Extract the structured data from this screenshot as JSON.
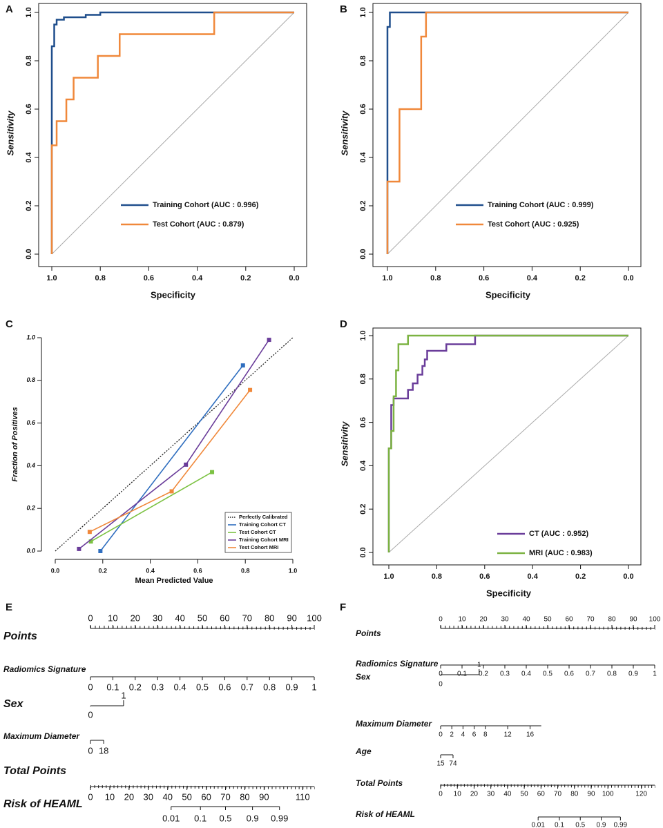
{
  "chart_data": [
    {
      "type": "line",
      "label": "A",
      "xlabel": "Specificity",
      "ylabel": "Sensitivity",
      "diagonal": true,
      "legend": "bottom",
      "xlim": [
        1,
        0
      ],
      "ylim": [
        0,
        1
      ],
      "xticks": [
        {
          "value": 1,
          "label": "1.0"
        },
        {
          "value": 0.8,
          "label": "0.8"
        },
        {
          "value": 0.6,
          "label": "0.6"
        },
        {
          "value": 0.4,
          "label": "0.4"
        },
        {
          "value": 0.2,
          "label": "0.2"
        },
        {
          "value": 0,
          "label": "0.0"
        }
      ],
      "yticks": [
        {
          "value": 0,
          "label": "0.0"
        },
        {
          "value": 0.2,
          "label": "0.2"
        },
        {
          "value": 0.4,
          "label": "0.4"
        },
        {
          "value": 0.6,
          "label": "0.6"
        },
        {
          "value": 0.8,
          "label": "0.8"
        },
        {
          "value": 1,
          "label": "1.0"
        }
      ],
      "series": [
        {
          "name": "Training Cohort (AUC : 0.996)",
          "color": "#1f4e8c",
          "x": [
            1,
            1,
            0.99,
            0.99,
            0.98,
            0.98,
            0.95,
            0.95,
            0.86,
            0.86,
            0.8,
            0.8,
            0
          ],
          "values": [
            0,
            0.86,
            0.86,
            0.95,
            0.95,
            0.97,
            0.97,
            0.98,
            0.98,
            0.99,
            0.99,
            1,
            1
          ]
        },
        {
          "name": "Test Cohort (AUC : 0.879)",
          "color": "#f0883a",
          "x": [
            1,
            1,
            0.98,
            0.98,
            0.94,
            0.94,
            0.91,
            0.91,
            0.81,
            0.81,
            0.72,
            0.72,
            0.33,
            0.33,
            0
          ],
          "values": [
            0,
            0.45,
            0.45,
            0.55,
            0.55,
            0.64,
            0.64,
            0.73,
            0.73,
            0.82,
            0.82,
            0.91,
            0.91,
            1,
            1
          ]
        }
      ]
    },
    {
      "type": "line",
      "label": "B",
      "xlabel": "Specificity",
      "ylabel": "Sensitivity",
      "diagonal": true,
      "legend": "bottom",
      "xlim": [
        1,
        0
      ],
      "ylim": [
        0,
        1
      ],
      "xticks": [
        {
          "value": 1,
          "label": "1.0"
        },
        {
          "value": 0.8,
          "label": "0.8"
        },
        {
          "value": 0.6,
          "label": "0.6"
        },
        {
          "value": 0.4,
          "label": "0.4"
        },
        {
          "value": 0.2,
          "label": "0.2"
        },
        {
          "value": 0,
          "label": "0.0"
        }
      ],
      "yticks": [
        {
          "value": 0,
          "label": "0.0"
        },
        {
          "value": 0.2,
          "label": "0.2"
        },
        {
          "value": 0.4,
          "label": "0.4"
        },
        {
          "value": 0.6,
          "label": "0.6"
        },
        {
          "value": 0.8,
          "label": "0.8"
        },
        {
          "value": 1,
          "label": "1.0"
        }
      ],
      "series": [
        {
          "name": "Training Cohort (AUC : 0.999)",
          "color": "#1f4e8c",
          "x": [
            1,
            1,
            0.99,
            0.99,
            0
          ],
          "values": [
            0,
            0.94,
            0.94,
            1,
            1
          ]
        },
        {
          "name": "Test Cohort (AUC : 0.925)",
          "color": "#f0883a",
          "x": [
            1,
            1,
            0.95,
            0.95,
            0.86,
            0.86,
            0.84,
            0.84,
            0
          ],
          "values": [
            0,
            0.3,
            0.3,
            0.6,
            0.6,
            0.9,
            0.9,
            1,
            1
          ]
        }
      ]
    },
    {
      "type": "line",
      "label": "C",
      "xlabel": "Mean Predicted Value",
      "ylabel": "Fraction of Positives",
      "markers": true,
      "legend": "bottom-right",
      "xlim": [
        0,
        1
      ],
      "ylim": [
        0,
        1
      ],
      "xticks": [
        {
          "value": 0,
          "label": "0.0"
        },
        {
          "value": 0.2,
          "label": "0.2"
        },
        {
          "value": 0.4,
          "label": "0.4"
        },
        {
          "value": 0.6,
          "label": "0.6"
        },
        {
          "value": 0.8,
          "label": "0.8"
        },
        {
          "value": 1,
          "label": "1.0"
        }
      ],
      "yticks": [
        {
          "value": 0,
          "label": "0.0"
        },
        {
          "value": 0.2,
          "label": "0.2"
        },
        {
          "value": 0.4,
          "label": "0.4"
        },
        {
          "value": 0.6,
          "label": "0.6"
        },
        {
          "value": 0.8,
          "label": "0.8"
        },
        {
          "value": 1,
          "label": "1.0"
        }
      ],
      "series": [
        {
          "name": "Perfectly Calibrated",
          "color": "#222222",
          "style": "dotted",
          "x": [
            0,
            1
          ],
          "values": [
            0,
            1
          ]
        },
        {
          "name": "Training Cohort CT",
          "color": "#2f6ebf",
          "x": [
            0.19,
            0.79
          ],
          "values": [
            0,
            0.87
          ]
        },
        {
          "name": "Test Cohort CT",
          "color": "#7cc243",
          "x": [
            0.15,
            0.66
          ],
          "values": [
            0.045,
            0.37
          ]
        },
        {
          "name": "Training Cohort MRI",
          "color": "#6a3d9a",
          "x": [
            0.1,
            0.55,
            0.9
          ],
          "values": [
            0.01,
            0.405,
            0.99
          ]
        },
        {
          "name": "Test Cohort MRI",
          "color": "#f0883a",
          "x": [
            0.145,
            0.49,
            0.82
          ],
          "values": [
            0.09,
            0.28,
            0.755
          ]
        }
      ]
    },
    {
      "type": "line",
      "label": "D",
      "xlabel": "Specificity",
      "ylabel": "Sensitivity",
      "diagonal": true,
      "legend": "bottom",
      "xlim": [
        1,
        0
      ],
      "ylim": [
        0,
        1
      ],
      "xticks": [
        {
          "value": 1,
          "label": "1.0"
        },
        {
          "value": 0.8,
          "label": "0.8"
        },
        {
          "value": 0.6,
          "label": "0.6"
        },
        {
          "value": 0.4,
          "label": "0.4"
        },
        {
          "value": 0.2,
          "label": "0.2"
        },
        {
          "value": 0,
          "label": "0.0"
        }
      ],
      "yticks": [
        {
          "value": 0,
          "label": "0.0"
        },
        {
          "value": 0.2,
          "label": "0.2"
        },
        {
          "value": 0.4,
          "label": "0.4"
        },
        {
          "value": 0.6,
          "label": "0.6"
        },
        {
          "value": 0.8,
          "label": "0.8"
        },
        {
          "value": 1,
          "label": "1.0"
        }
      ],
      "series": [
        {
          "name": "CT (AUC : 0.952)",
          "color": "#6a3d9a",
          "x": [
            1,
            1,
            0.99,
            0.99,
            0.98,
            0.98,
            0.92,
            0.92,
            0.9,
            0.9,
            0.88,
            0.88,
            0.86,
            0.86,
            0.85,
            0.85,
            0.84,
            0.84,
            0.76,
            0.76,
            0.64,
            0.64,
            0
          ],
          "values": [
            0,
            0.48,
            0.48,
            0.68,
            0.68,
            0.71,
            0.71,
            0.75,
            0.75,
            0.78,
            0.78,
            0.82,
            0.82,
            0.86,
            0.86,
            0.89,
            0.89,
            0.93,
            0.93,
            0.96,
            0.96,
            1,
            1
          ]
        },
        {
          "name": "MRI (AUC : 0.983)",
          "color": "#7cb342",
          "x": [
            1,
            1,
            0.99,
            0.99,
            0.98,
            0.98,
            0.97,
            0.97,
            0.96,
            0.96,
            0.92,
            0.92,
            0
          ],
          "values": [
            0,
            0.48,
            0.48,
            0.56,
            0.56,
            0.72,
            0.72,
            0.84,
            0.84,
            0.96,
            0.96,
            1,
            1
          ]
        }
      ]
    },
    {
      "type": "nomogram",
      "label": "E",
      "total_lim": [
        0,
        116
      ],
      "rows": [
        {
          "name": "Points",
          "domain": [
            0,
            100
          ],
          "points": [
            0,
            100
          ],
          "ticks": [
            0,
            10,
            20,
            30,
            40,
            50,
            60,
            70,
            80,
            90,
            100
          ]
        },
        {
          "name": "Radiomics Signature",
          "domain": [
            0,
            1
          ],
          "points": [
            0,
            100
          ],
          "ticks": [
            0,
            0.1,
            0.2,
            0.3,
            0.4,
            0.5,
            0.6,
            0.7,
            0.8,
            0.9,
            1
          ]
        },
        {
          "name": "Sex",
          "domain": [
            0,
            1
          ],
          "points": [
            0,
            14.8
          ],
          "ticks": [
            0,
            1
          ]
        },
        {
          "name": "Maximum Diameter",
          "domain": [
            0,
            18
          ],
          "points": [
            0,
            5.9
          ],
          "ticks": [
            0,
            18
          ]
        },
        {
          "name": "Total Points",
          "axis": "total",
          "ticks": [
            0,
            10,
            20,
            30,
            40,
            50,
            60,
            70,
            80,
            90,
            110
          ]
        },
        {
          "name": "Risk of HEAML",
          "ticks": [
            0.01,
            0.1,
            0.5,
            0.9,
            0.99
          ],
          "total_points": [
            41.8,
            57,
            70,
            84,
            98
          ]
        }
      ]
    },
    {
      "type": "nomogram",
      "label": "F",
      "total_lim": [
        0,
        128
      ],
      "rows": [
        {
          "name": "Points",
          "domain": [
            0,
            100
          ],
          "points": [
            0,
            100
          ],
          "ticks": [
            0,
            10,
            20,
            30,
            40,
            50,
            60,
            70,
            80,
            90,
            100
          ]
        },
        {
          "name": "Radiomics Signature",
          "domain": [
            0,
            1
          ],
          "points": [
            0,
            100
          ],
          "ticks": [
            0,
            0.1,
            0.2,
            0.3,
            0.4,
            0.5,
            0.6,
            0.7,
            0.8,
            0.9,
            1
          ]
        },
        {
          "name": "Sex",
          "domain": [
            0,
            1
          ],
          "points": [
            0,
            18
          ],
          "ticks": [
            0,
            1
          ]
        },
        {
          "name": "Maximum Diameter",
          "domain": [
            0,
            18
          ],
          "points": [
            0,
            47
          ],
          "ticks": [
            0,
            2,
            4,
            6,
            8,
            12,
            16
          ]
        },
        {
          "name": "Age",
          "domain": [
            15,
            74
          ],
          "points": [
            0,
            5.8
          ],
          "ticks": [
            15,
            74
          ]
        },
        {
          "name": "Total Points",
          "axis": "total",
          "ticks": [
            0,
            10,
            20,
            30,
            40,
            50,
            60,
            70,
            80,
            90,
            100,
            120
          ]
        },
        {
          "name": "Risk of HEAML",
          "ticks": [
            0.01,
            0.1,
            0.5,
            0.9,
            0.99
          ],
          "total_points": [
            58.3,
            71,
            83.5,
            96,
            107.5
          ]
        }
      ]
    }
  ]
}
